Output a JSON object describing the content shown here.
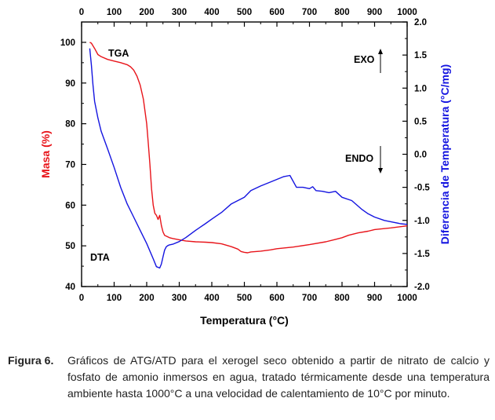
{
  "chart_data": {
    "type": "line",
    "x_axis": {
      "label": "Temperatura (°C)",
      "range": [
        0,
        1000
      ],
      "ticks": [
        "0",
        "100",
        "200",
        "300",
        "400",
        "500",
        "600",
        "700",
        "800",
        "900",
        "1000"
      ]
    },
    "y_left": {
      "label": "Masa (%)",
      "range": [
        40,
        105
      ],
      "ticks": [
        "40",
        "50",
        "60",
        "70",
        "80",
        "90",
        "100"
      ],
      "color": "#e8141a"
    },
    "y_right": {
      "label": "Diferencia de Temperatura (°C/mg)",
      "range": [
        -2.0,
        2.0
      ],
      "ticks": [
        "-2.0",
        "-1.5",
        "-1.0",
        "-0.5",
        "0.0",
        "0.5",
        "1.0",
        "1.5",
        "2.0"
      ],
      "color": "#1414e0"
    },
    "series": [
      {
        "name": "TGA",
        "axis": "left",
        "color": "#e8141a",
        "x": [
          25,
          30,
          40,
          50,
          60,
          80,
          100,
          120,
          140,
          150,
          160,
          170,
          180,
          190,
          200,
          205,
          210,
          215,
          220,
          225,
          230,
          235,
          240,
          245,
          250,
          255,
          260,
          270,
          280,
          300,
          320,
          350,
          380,
          400,
          430,
          460,
          480,
          490,
          500,
          510,
          520,
          550,
          580,
          600,
          650,
          700,
          750,
          780,
          800,
          820,
          850,
          880,
          900,
          950,
          1000
        ],
        "y": [
          100,
          99.8,
          98.5,
          97,
          96.5,
          95.8,
          95.4,
          95,
          94.5,
          94,
          93.2,
          91.7,
          89.5,
          86,
          80,
          75,
          70,
          64,
          60,
          58,
          57.5,
          56.5,
          57.5,
          55,
          53.4,
          52.6,
          52.4,
          52,
          51.8,
          51.5,
          51.2,
          51,
          50.9,
          50.8,
          50.5,
          49.8,
          49.2,
          48.6,
          48.4,
          48.3,
          48.5,
          48.7,
          49,
          49.3,
          49.7,
          50.3,
          51,
          51.6,
          52,
          52.6,
          53.2,
          53.6,
          54,
          54.4,
          54.9
        ]
      },
      {
        "name": "DTA",
        "axis": "right",
        "color": "#1414e0",
        "x": [
          25,
          30,
          35,
          40,
          50,
          60,
          80,
          100,
          120,
          140,
          160,
          180,
          200,
          220,
          230,
          240,
          245,
          250,
          255,
          260,
          265,
          270,
          280,
          300,
          320,
          350,
          380,
          400,
          430,
          460,
          480,
          500,
          520,
          550,
          580,
          600,
          620,
          640,
          660,
          680,
          700,
          710,
          720,
          740,
          760,
          780,
          800,
          830,
          860,
          880,
          900,
          930,
          960,
          980,
          1000
        ],
        "y": [
          1.6,
          1.35,
          1.05,
          0.8,
          0.55,
          0.35,
          0.08,
          -0.2,
          -0.5,
          -0.75,
          -0.95,
          -1.15,
          -1.35,
          -1.58,
          -1.7,
          -1.72,
          -1.66,
          -1.55,
          -1.45,
          -1.4,
          -1.38,
          -1.37,
          -1.36,
          -1.32,
          -1.26,
          -1.15,
          -1.05,
          -0.98,
          -0.88,
          -0.75,
          -0.7,
          -0.65,
          -0.55,
          -0.48,
          -0.42,
          -0.38,
          -0.34,
          -0.32,
          -0.5,
          -0.5,
          -0.52,
          -0.49,
          -0.55,
          -0.56,
          -0.58,
          -0.56,
          -0.65,
          -0.7,
          -0.83,
          -0.9,
          -0.95,
          -1.0,
          -1.03,
          -1.05,
          -1.06
        ]
      }
    ],
    "annotations": {
      "tga_label": "TGA",
      "dta_label": "DTA",
      "exo": "EXO",
      "endo": "ENDO"
    },
    "grid": false,
    "legend": "none"
  },
  "caption": {
    "label": "Figura 6.",
    "text": "Gráficos de ATG/ATD para el xerogel seco obtenido a partir de nitrato de calcio y fosfato de amonio inmersos en agua, tratado térmicamente desde una temperatura ambiente hasta 1000°C a una velocidad de calentamiento de 10°C por minuto."
  }
}
